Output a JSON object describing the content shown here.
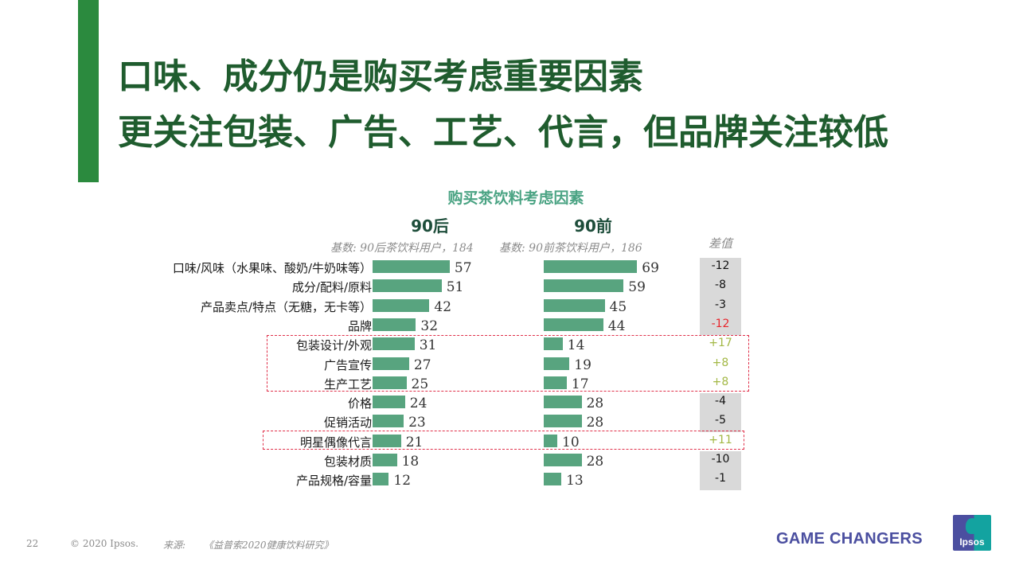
{
  "slide": {
    "title_line1": "口味、成分仍是购买考虑重要因素",
    "title_line2": "更关注包装、广告、工艺、代言，但品牌关注较低",
    "page_number": "22",
    "copyright": "© 2020 Ipsos.",
    "source_label": "来源:",
    "source_text": "《益普索2020健康饮料研究》",
    "brand_tagline": "GAME CHANGERS",
    "logo_text": "Ipsos"
  },
  "chart_data": {
    "type": "bar",
    "orientation": "horizontal",
    "title": "购买茶饮料考虑因素",
    "categories": [
      "口味/风味（水果味、酸奶/牛奶味等）",
      "成分/配料/原料",
      "产品卖点/特点（无糖，无卡等）",
      "品牌",
      "包装设计/外观",
      "广告宣传",
      "生产工艺",
      "价格",
      "促销活动",
      "明星偶像代言",
      "包装材质",
      "产品规格/容量"
    ],
    "series": [
      {
        "name": "90后",
        "base": "基数: 90后茶饮料用户，184",
        "values": [
          57,
          51,
          42,
          32,
          31,
          27,
          25,
          24,
          23,
          21,
          18,
          12
        ]
      },
      {
        "name": "90前",
        "base": "基数: 90前茶饮料用户，186",
        "values": [
          69,
          59,
          45,
          44,
          14,
          19,
          17,
          28,
          28,
          10,
          28,
          13
        ]
      }
    ],
    "diff": {
      "label": "差值",
      "values": [
        "-12",
        "-8",
        "-3",
        "-12",
        "+17",
        "+8",
        "+8",
        "-4",
        "-5",
        "+11",
        "-10",
        "-1"
      ]
    },
    "highlights": [
      {
        "rows": [
          "包装设计/外观",
          "广告宣传",
          "生产工艺"
        ],
        "style": "red-dashed-box"
      },
      {
        "rows": [
          "明星偶像代言"
        ],
        "style": "red-dashed-box"
      }
    ],
    "colors": {
      "bar": "#58a47f",
      "positive_diff": "#a3b845",
      "negative_highlight": "#e8262d",
      "diff_bg": "#d9d9d9"
    },
    "xlabel": "",
    "ylabel": "",
    "grid": false
  }
}
